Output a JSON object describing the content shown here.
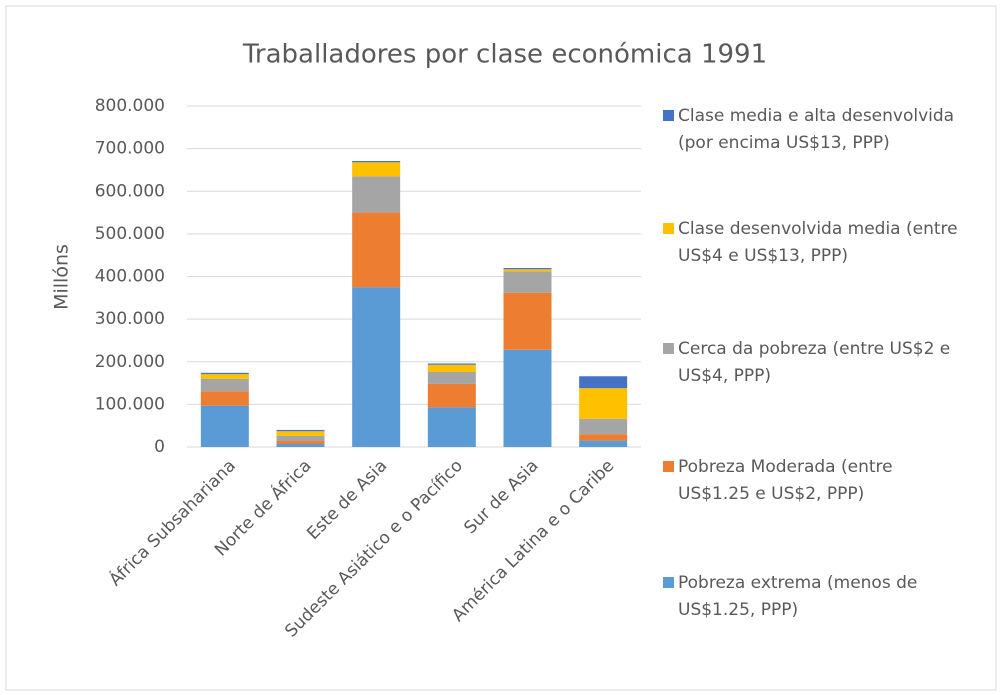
{
  "chart_data": {
    "type": "stacked_bar",
    "title": "Traballadores por clase económica 1991",
    "y_label": "Millóns",
    "categories": [
      "África Subsahariana",
      "Norte de África",
      "Este de Asia",
      "Sudeste Asiático e  o Pacífico",
      "Sur de Asia",
      "América Latina e o Caribe"
    ],
    "series": [
      {
        "name": "Pobreza extrema (menos de US$1.25, PPP)",
        "color": "#5b9bd5",
        "values": [
          97000,
          7000,
          375000,
          93000,
          228000,
          15000
        ]
      },
      {
        "name": "Pobreza Moderada (entre US$1.25 e US$2, PPP)",
        "color": "#ed7d31",
        "values": [
          34000,
          7000,
          175000,
          55000,
          134000,
          15000
        ]
      },
      {
        "name": "Cerca da pobreza (entre US$2 e US$4, PPP)",
        "color": "#a5a5a5",
        "values": [
          29000,
          12000,
          85000,
          28000,
          50000,
          36000
        ]
      },
      {
        "name": "Clase desenvolvida media (entre US$4 e US$13, PPP)",
        "color": "#ffc000",
        "values": [
          11000,
          11000,
          33000,
          17000,
          5000,
          72000
        ]
      },
      {
        "name": "Clase media e alta desenvolvida (por encima US$13, PPP)",
        "color": "#4472c4",
        "values": [
          3000,
          3000,
          3000,
          3000,
          3000,
          28000
        ]
      }
    ],
    "ylim": [
      0,
      800000
    ],
    "yticks": [
      0,
      {
        "value": 100000,
        "label": "100.000"
      },
      {
        "value": 200000,
        "label": "200.000"
      },
      {
        "value": 300000,
        "label": "300.000"
      },
      {
        "value": 400000,
        "label": "400.000"
      },
      {
        "value": 500000,
        "label": "500.000"
      },
      {
        "value": 600000,
        "label": "600.000"
      },
      {
        "value": 700000,
        "label": "700.000"
      },
      {
        "value": 800000,
        "label": "800.000"
      }
    ],
    "grid": true,
    "legend": "right"
  }
}
